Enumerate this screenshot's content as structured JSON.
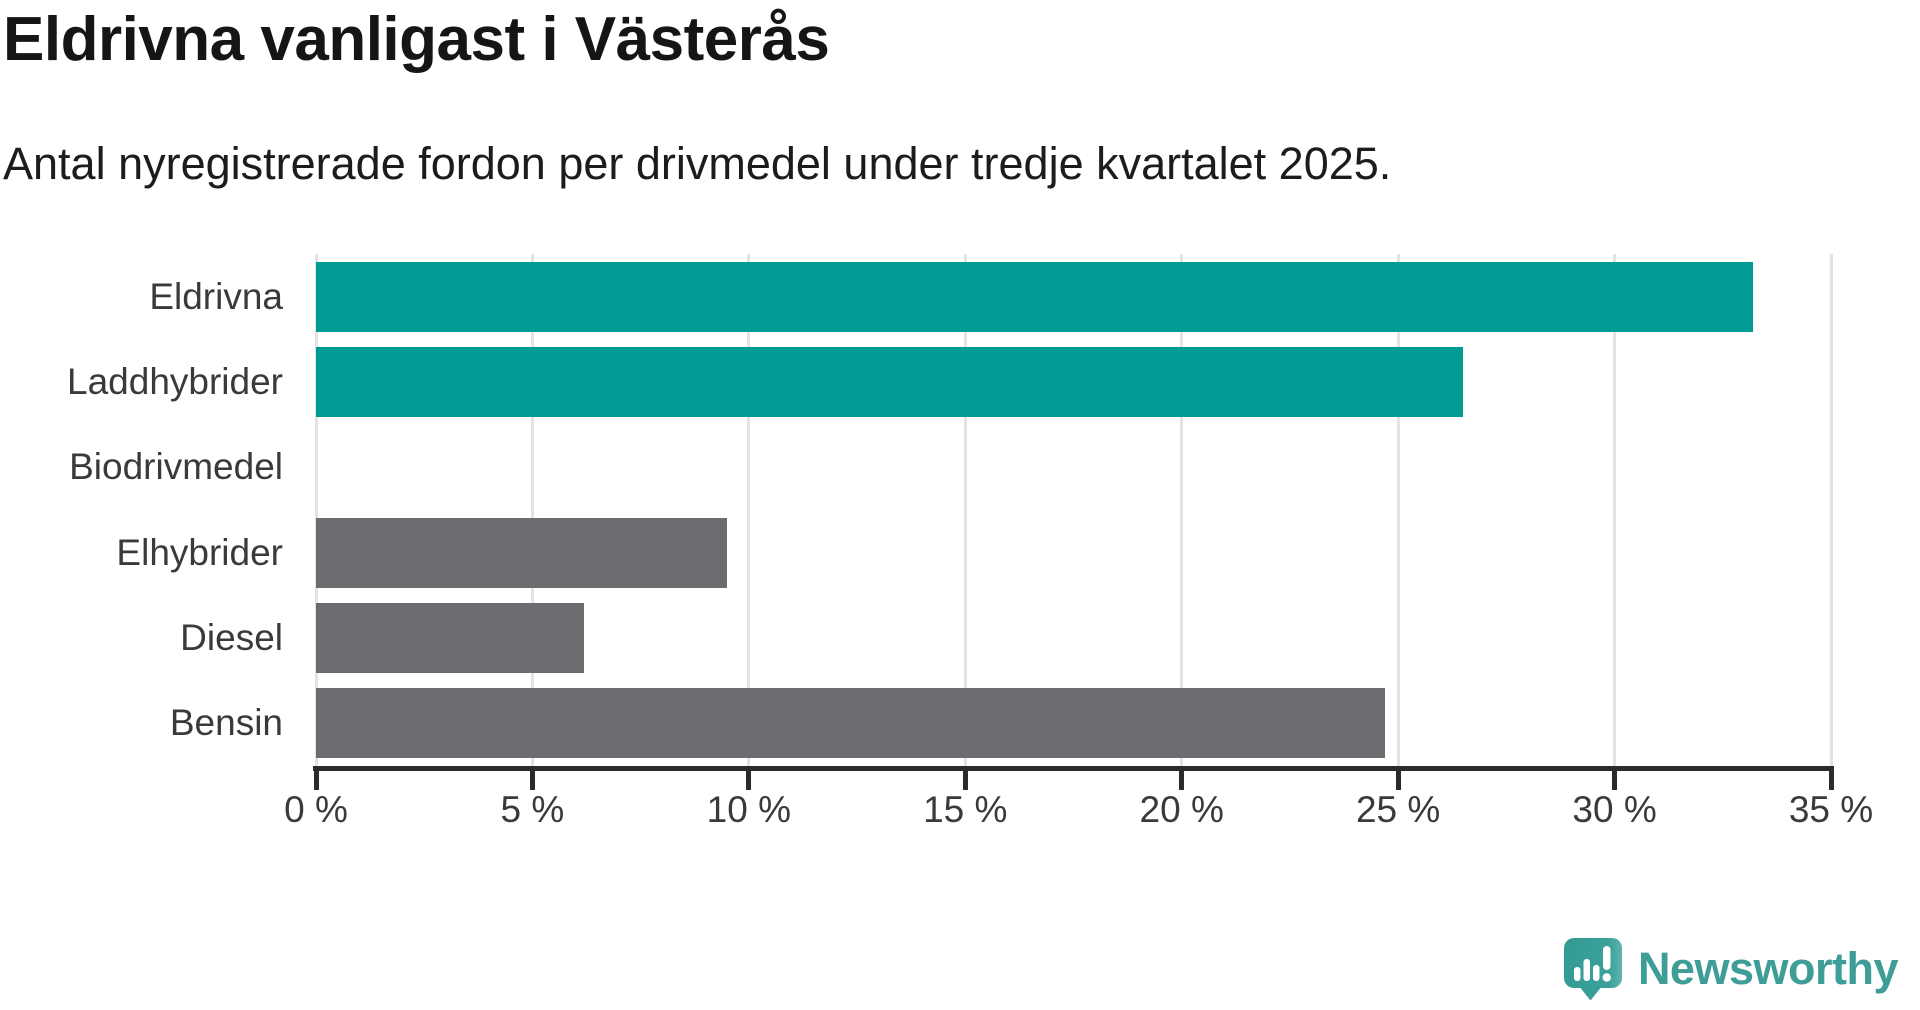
{
  "header": {
    "title": "Eldrivna vanligast i Västerås",
    "subtitle": "Antal nyregistrerade fordon per drivmedel under tredje kvartalet 2025."
  },
  "chart_data": {
    "type": "bar",
    "orientation": "horizontal",
    "title": "Eldrivna vanligast i Västerås",
    "subtitle": "Antal nyregistrerade fordon per drivmedel under tredje kvartalet 2025.",
    "categories": [
      "Eldrivna",
      "Laddhybrider",
      "Biodrivmedel",
      "Elhybrider",
      "Diesel",
      "Bensin"
    ],
    "values": [
      33.2,
      26.5,
      0,
      9.5,
      6.2,
      24.7
    ],
    "unit": "%",
    "highlighted": [
      true,
      true,
      false,
      false,
      false,
      false
    ],
    "xlim": [
      0,
      35
    ],
    "xticks": [
      0,
      5,
      10,
      15,
      20,
      25,
      30,
      35
    ],
    "xtick_labels": [
      "0 %",
      "5 %",
      "10 %",
      "15 %",
      "20 %",
      "25 %",
      "30 %",
      "35 %"
    ],
    "grid": "vertical",
    "legend": "none",
    "colors": {
      "highlight": "#009c94",
      "default": "#6b6b70",
      "grid": "#e3e3e3",
      "axis": "#2b2b2b",
      "label": "#3a3a3a"
    }
  },
  "branding": {
    "logo_text": "Newsworthy",
    "logo_color": "#3f9d97",
    "icon_name": "newsworthy-bubble-chart-icon",
    "icon_color": "#38a29a"
  }
}
